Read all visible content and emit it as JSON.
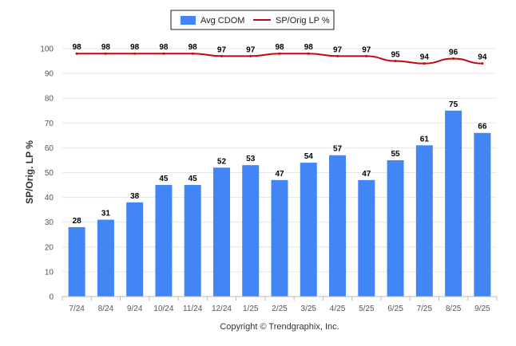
{
  "chart_data": {
    "type": "bar",
    "categories": [
      "7/24",
      "8/24",
      "9/24",
      "10/24",
      "11/24",
      "12/24",
      "1/25",
      "2/25",
      "3/25",
      "4/25",
      "5/25",
      "6/25",
      "7/25",
      "8/25",
      "9/25"
    ],
    "series": [
      {
        "name": "Avg CDOM",
        "type": "bar",
        "values": [
          28,
          31,
          38,
          45,
          45,
          52,
          53,
          47,
          54,
          57,
          47,
          55,
          61,
          75,
          66
        ]
      },
      {
        "name": "SP/Orig LP %",
        "type": "line",
        "values": [
          98,
          98,
          98,
          98,
          98,
          97,
          97,
          98,
          98,
          97,
          97,
          95,
          94,
          96,
          94
        ]
      }
    ],
    "ylabel": "SP/Orig. LP %",
    "xlabel": "",
    "ylim": [
      0,
      100
    ],
    "yticks": [
      0,
      10,
      20,
      30,
      40,
      50,
      60,
      70,
      80,
      90,
      100
    ],
    "grid": true,
    "legend_position": "top-center"
  },
  "colors": {
    "bar": "#4285f4",
    "line": "#c0080f",
    "grid": "#e6e6e6",
    "axis": "#bbbbbb"
  },
  "footer": {
    "copyright": "Copyright © Trendgraphix, Inc."
  }
}
